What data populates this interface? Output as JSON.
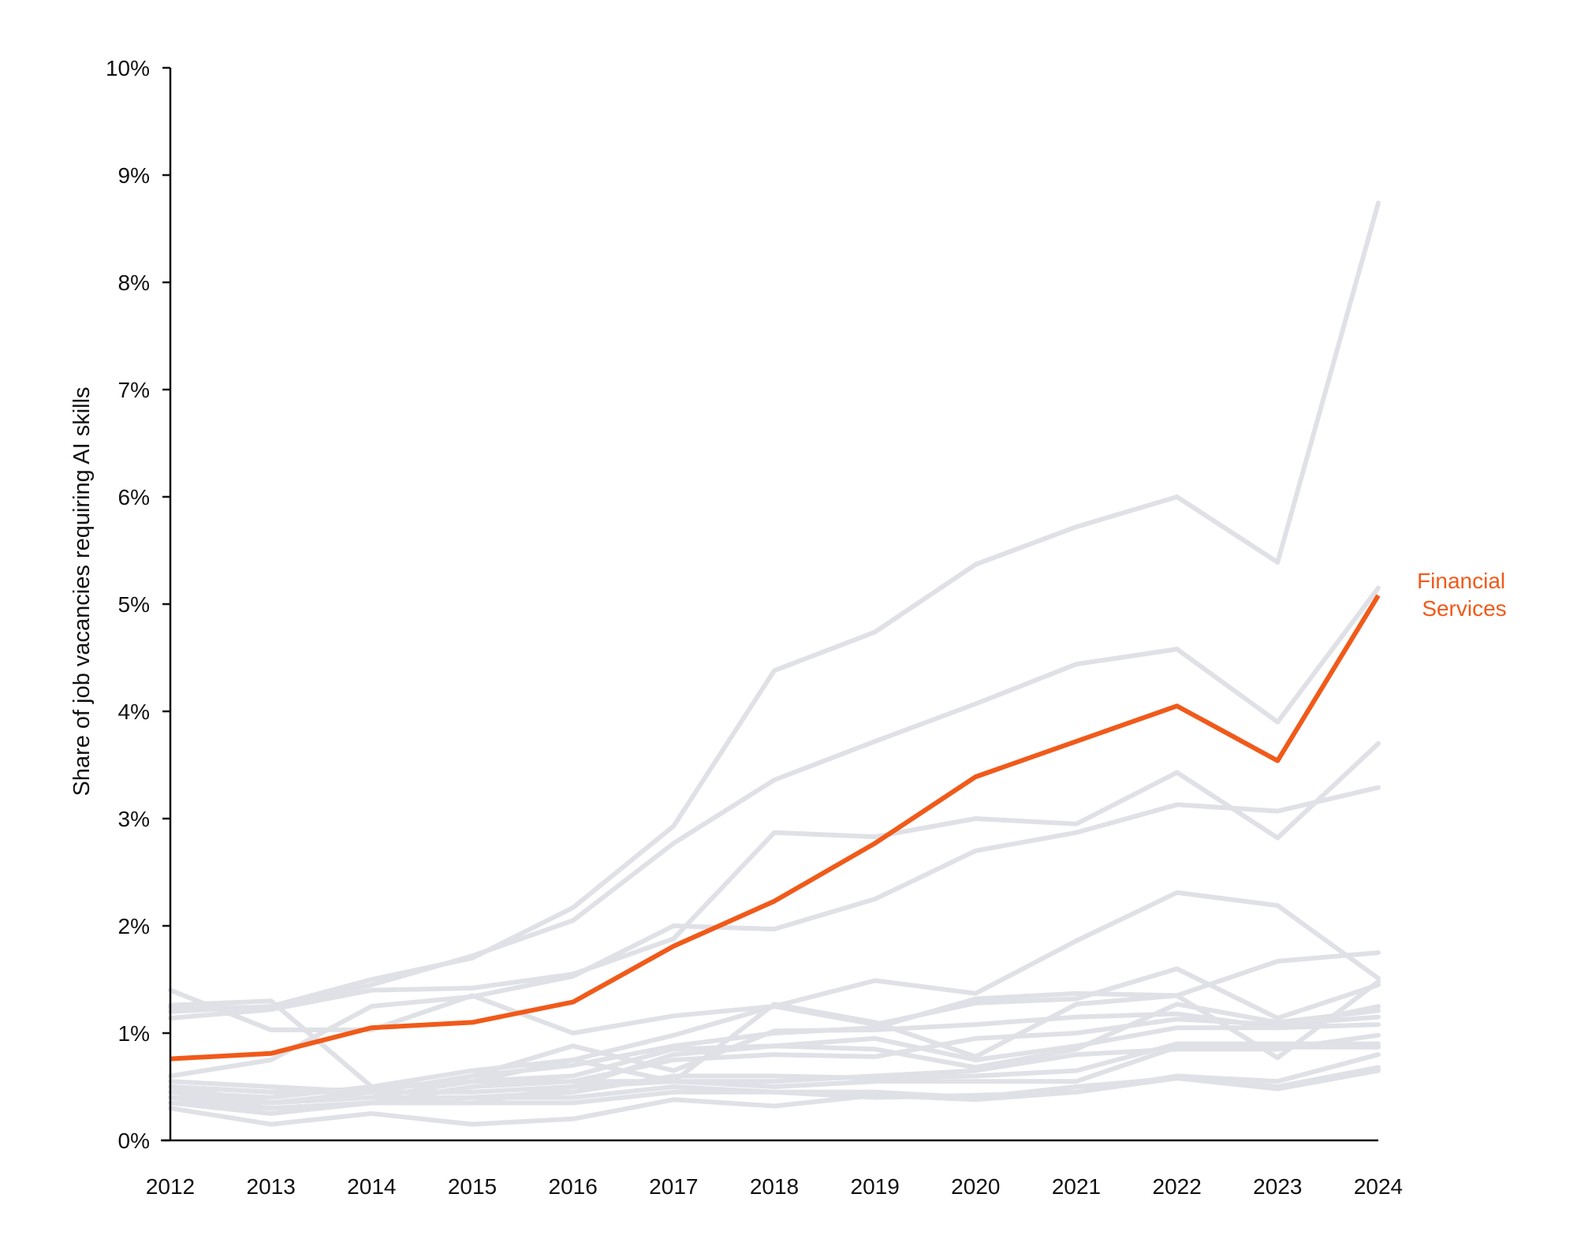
{
  "chart_data": {
    "type": "line",
    "title": "",
    "xlabel": "",
    "ylabel": "Share of job vacancies requiring AI skills",
    "xlim": [
      2012,
      2024
    ],
    "ylim": [
      0,
      10
    ],
    "grid": false,
    "x": [
      2012,
      2013,
      2014,
      2015,
      2016,
      2017,
      2018,
      2019,
      2020,
      2021,
      2022,
      2023,
      2024
    ],
    "x_tick_labels": [
      "2012",
      "2013",
      "2014",
      "2015",
      "2016",
      "2017",
      "2018",
      "2019",
      "2020",
      "2021",
      "2022",
      "2023",
      "2024"
    ],
    "y_ticks": [
      0,
      1,
      2,
      3,
      4,
      5,
      6,
      7,
      8,
      9,
      10
    ],
    "y_tick_labels": [
      "0%",
      "1%",
      "2%",
      "3%",
      "4%",
      "5%",
      "6%",
      "7%",
      "8%",
      "9%",
      "10%"
    ],
    "colors": {
      "highlight": "#f05a1a",
      "background_series": "#dfe1e6",
      "axis": "#111111"
    },
    "highlight_series": {
      "name": "Financial Services",
      "label_lines": [
        "Financial",
        "Services"
      ],
      "values": [
        0.76,
        0.81,
        1.05,
        1.1,
        1.29,
        1.81,
        2.23,
        2.77,
        3.39,
        3.72,
        4.05,
        3.54,
        5.08
      ]
    },
    "series": [
      {
        "values": [
          1.2,
          1.25,
          1.5,
          1.7,
          2.17,
          2.93,
          4.38,
          4.74,
          5.37,
          5.72,
          6.0,
          5.39,
          8.74
        ]
      },
      {
        "values": [
          1.24,
          1.24,
          1.45,
          1.72,
          2.05,
          2.77,
          3.36,
          3.72,
          4.07,
          4.44,
          4.58,
          3.9,
          5.15
        ]
      },
      {
        "values": [
          1.14,
          1.22,
          1.4,
          1.42,
          1.55,
          1.88,
          2.87,
          2.83,
          3.0,
          2.95,
          3.43,
          2.82,
          3.7
        ]
      },
      {
        "values": [
          0.6,
          0.75,
          1.25,
          1.34,
          1.53,
          2.0,
          1.97,
          2.25,
          2.7,
          2.87,
          3.13,
          3.07,
          3.29
        ]
      },
      {
        "values": [
          0.45,
          0.4,
          0.5,
          0.65,
          0.75,
          0.98,
          1.25,
          1.49,
          1.37,
          1.86,
          2.31,
          2.19,
          1.51
        ]
      },
      {
        "values": [
          0.5,
          0.45,
          0.45,
          0.6,
          0.7,
          0.88,
          1.0,
          1.05,
          1.32,
          1.37,
          1.35,
          1.67,
          1.75
        ]
      },
      {
        "values": [
          1.4,
          1.03,
          1.03,
          1.35,
          1.0,
          1.16,
          1.25,
          1.08,
          1.28,
          1.32,
          1.6,
          1.14,
          1.45
        ]
      },
      {
        "values": [
          1.26,
          1.3,
          0.5,
          0.55,
          0.75,
          0.55,
          1.27,
          1.1,
          0.78,
          1.27,
          1.35,
          0.77,
          1.48
        ]
      },
      {
        "values": [
          0.55,
          0.5,
          0.45,
          0.6,
          0.88,
          0.65,
          1.02,
          1.03,
          1.08,
          1.15,
          1.18,
          1.05,
          1.25
        ]
      },
      {
        "values": [
          0.5,
          0.35,
          0.4,
          0.55,
          0.6,
          0.85,
          0.88,
          0.85,
          0.68,
          0.85,
          1.27,
          1.1,
          1.21
        ]
      },
      {
        "values": [
          0.4,
          0.3,
          0.35,
          0.5,
          0.55,
          0.75,
          0.8,
          0.78,
          0.95,
          1.0,
          1.13,
          1.08,
          1.15
        ]
      },
      {
        "values": [
          0.45,
          0.35,
          0.45,
          0.45,
          0.5,
          0.8,
          0.88,
          0.95,
          0.75,
          0.88,
          1.05,
          1.05,
          1.08
        ]
      },
      {
        "values": [
          0.35,
          0.3,
          0.35,
          0.35,
          0.5,
          0.55,
          0.55,
          0.6,
          0.65,
          0.8,
          0.85,
          0.85,
          0.98
        ]
      },
      {
        "values": [
          0.4,
          0.35,
          0.4,
          0.4,
          0.45,
          0.6,
          0.6,
          0.58,
          0.6,
          0.65,
          0.9,
          0.9,
          0.9
        ]
      },
      {
        "values": [
          0.5,
          0.45,
          0.48,
          0.55,
          0.55,
          0.55,
          0.5,
          0.55,
          0.55,
          0.55,
          0.87,
          0.87,
          0.87
        ]
      },
      {
        "values": [
          0.35,
          0.25,
          0.35,
          0.4,
          0.4,
          0.5,
          0.45,
          0.4,
          0.42,
          0.45,
          0.6,
          0.55,
          0.8
        ]
      },
      {
        "values": [
          0.4,
          0.3,
          0.35,
          0.35,
          0.35,
          0.45,
          0.45,
          0.45,
          0.4,
          0.5,
          0.58,
          0.5,
          0.68
        ]
      },
      {
        "values": [
          0.3,
          0.15,
          0.25,
          0.15,
          0.2,
          0.38,
          0.32,
          0.42,
          0.38,
          0.45,
          0.58,
          0.48,
          0.65
        ]
      }
    ]
  }
}
